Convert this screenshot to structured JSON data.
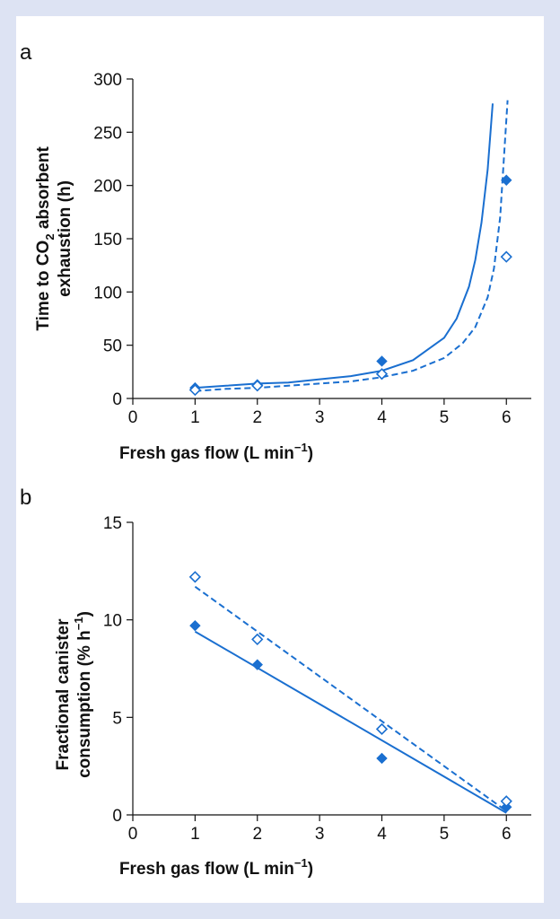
{
  "chart_data": [
    {
      "panel": "a",
      "type": "scatter",
      "xlabel_parts": [
        "Fresh gas flow (L min",
        "−1",
        ")"
      ],
      "ylabel_line1_parts": [
        "Time to CO",
        "2",
        " absorbent"
      ],
      "ylabel_line2": "exhaustion (h)",
      "xlim": [
        0,
        6.4
      ],
      "ylim": [
        0,
        300
      ],
      "xticks": [
        "0",
        "1",
        "2",
        "3",
        "4",
        "5",
        "6"
      ],
      "yticks": [
        "0",
        "50",
        "100",
        "150",
        "200",
        "250",
        "300"
      ],
      "colors": {
        "series": "#1a6fd0",
        "axis": "#111111"
      },
      "series": [
        {
          "marker": "filled-diamond",
          "line": "solid",
          "points": [
            {
              "x": 1,
              "y": 10
            },
            {
              "x": 2,
              "y": 13
            },
            {
              "x": 4,
              "y": 35
            },
            {
              "x": 6,
              "y": 205
            }
          ],
          "fit_curve": [
            {
              "x": 1.0,
              "y": 10
            },
            {
              "x": 1.5,
              "y": 12
            },
            {
              "x": 2.0,
              "y": 14
            },
            {
              "x": 2.5,
              "y": 15
            },
            {
              "x": 3.0,
              "y": 18
            },
            {
              "x": 3.5,
              "y": 21
            },
            {
              "x": 4.0,
              "y": 26
            },
            {
              "x": 4.5,
              "y": 36
            },
            {
              "x": 5.0,
              "y": 57
            },
            {
              "x": 5.2,
              "y": 75
            },
            {
              "x": 5.4,
              "y": 105
            },
            {
              "x": 5.5,
              "y": 130
            },
            {
              "x": 5.6,
              "y": 165
            },
            {
              "x": 5.7,
              "y": 215
            },
            {
              "x": 5.78,
              "y": 277
            }
          ]
        },
        {
          "marker": "open-diamond",
          "line": "dashed",
          "points": [
            {
              "x": 1,
              "y": 8
            },
            {
              "x": 2,
              "y": 12
            },
            {
              "x": 4,
              "y": 23
            },
            {
              "x": 6,
              "y": 133
            }
          ],
          "fit_curve": [
            {
              "x": 1.0,
              "y": 7
            },
            {
              "x": 1.5,
              "y": 9
            },
            {
              "x": 2.0,
              "y": 10
            },
            {
              "x": 2.5,
              "y": 12
            },
            {
              "x": 3.0,
              "y": 14
            },
            {
              "x": 3.5,
              "y": 16
            },
            {
              "x": 4.0,
              "y": 20
            },
            {
              "x": 4.5,
              "y": 26
            },
            {
              "x": 5.0,
              "y": 38
            },
            {
              "x": 5.3,
              "y": 52
            },
            {
              "x": 5.5,
              "y": 67
            },
            {
              "x": 5.7,
              "y": 95
            },
            {
              "x": 5.8,
              "y": 122
            },
            {
              "x": 5.9,
              "y": 170
            },
            {
              "x": 5.97,
              "y": 235
            },
            {
              "x": 6.02,
              "y": 280
            }
          ]
        }
      ]
    },
    {
      "panel": "b",
      "type": "scatter",
      "xlabel_parts": [
        "Fresh gas flow (L min",
        "−1",
        ")"
      ],
      "ylabel_line1": "Fractional canister",
      "ylabel_line2_parts": [
        "consumption (% h",
        "−1",
        ")"
      ],
      "xlim": [
        0,
        6.4
      ],
      "ylim": [
        0,
        15
      ],
      "xticks": [
        "0",
        "1",
        "2",
        "3",
        "4",
        "5",
        "6"
      ],
      "yticks": [
        "0",
        "5",
        "10",
        "15"
      ],
      "colors": {
        "series": "#1a6fd0",
        "axis": "#111111"
      },
      "series": [
        {
          "marker": "filled-diamond",
          "line": "solid",
          "points": [
            {
              "x": 1,
              "y": 9.7
            },
            {
              "x": 2,
              "y": 7.7
            },
            {
              "x": 4,
              "y": 2.9
            },
            {
              "x": 6,
              "y": 0.4
            }
          ],
          "fit_line": [
            {
              "x": 1,
              "y": 9.4
            },
            {
              "x": 6,
              "y": 0.1
            }
          ]
        },
        {
          "marker": "open-diamond",
          "line": "dashed",
          "points": [
            {
              "x": 1,
              "y": 12.2
            },
            {
              "x": 2,
              "y": 9.0
            },
            {
              "x": 4,
              "y": 4.4
            },
            {
              "x": 6,
              "y": 0.7
            }
          ],
          "fit_line": [
            {
              "x": 1,
              "y": 11.7
            },
            {
              "x": 6,
              "y": 0.2
            }
          ]
        }
      ]
    }
  ]
}
